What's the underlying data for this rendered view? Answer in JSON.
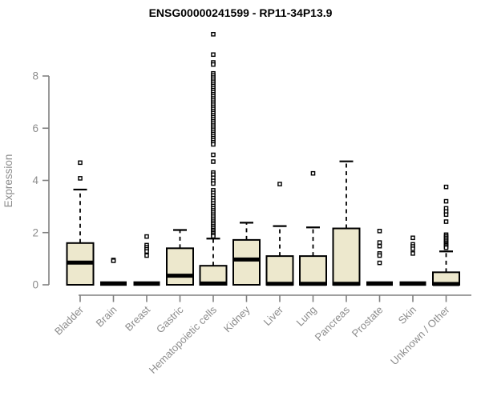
{
  "colors": {
    "box_fill": "#EDE8CD",
    "box_border": "#000000",
    "median": "#000000",
    "whisker": "#000000",
    "outlier_border": "#000000",
    "outlier_fill": "#FFFFFF",
    "axis_line": "#808080",
    "axis_text": "#8C8C8C",
    "title_text": "#000000",
    "background": "#FFFFFF"
  },
  "chart_data": {
    "type": "boxplot",
    "title": "ENSG00000241599 - RP11-34P13.9",
    "ylabel": "Expression",
    "xlabel": "",
    "yticks": [
      0,
      2,
      4,
      6,
      8
    ],
    "ylim": [
      0,
      9.7
    ],
    "grid": false,
    "legend": "none",
    "categories": [
      "Bladder",
      "Brain",
      "Breast",
      "Gastric",
      "Hematopoietic cells",
      "Kidney",
      "Liver",
      "Lung",
      "Pancreas",
      "Prostate",
      "Skin",
      "Unknown / Other"
    ],
    "series": [
      {
        "name": "Bladder",
        "whisker_low": 0,
        "q1": 0,
        "median": 0.85,
        "q3": 1.6,
        "whisker_high": 3.65,
        "outliers": [
          4.68,
          4.08
        ]
      },
      {
        "name": "Brain",
        "whisker_low": 0,
        "q1": 0,
        "median": 0,
        "q3": 0,
        "whisker_high": 0,
        "outliers": [
          0.95,
          0.92
        ]
      },
      {
        "name": "Breast",
        "whisker_low": 0,
        "q1": 0,
        "median": 0,
        "q3": 0,
        "whisker_high": 0,
        "outliers": [
          1.85,
          1.52,
          1.44,
          1.36,
          1.28,
          1.12
        ]
      },
      {
        "name": "Gastric",
        "whisker_low": 0,
        "q1": 0,
        "median": 0.35,
        "q3": 1.4,
        "whisker_high": 2.1,
        "outliers": []
      },
      {
        "name": "Hematopoietic cells",
        "whisker_low": 0,
        "q1": 0,
        "median": 0.05,
        "q3": 0.73,
        "whisker_high": 1.77,
        "outliers": [
          9.6,
          8.82,
          8.52,
          8.44,
          8.1,
          8.02,
          7.94,
          7.86,
          7.78,
          7.7,
          7.62,
          7.54,
          7.46,
          7.38,
          7.3,
          7.22,
          7.14,
          7.06,
          6.98,
          6.9,
          6.82,
          6.74,
          6.66,
          6.58,
          6.5,
          6.42,
          6.34,
          6.26,
          6.18,
          6.1,
          6.02,
          5.94,
          5.86,
          5.78,
          5.7,
          5.62,
          5.54,
          5.46,
          5.38,
          4.98,
          4.72,
          4.3,
          4.22,
          4.1,
          3.98,
          3.88,
          3.62,
          3.52,
          3.42,
          3.32,
          3.22,
          3.12,
          3.02,
          2.93,
          2.85,
          2.77,
          2.69,
          2.61,
          2.53,
          2.45,
          2.38,
          2.31,
          2.24,
          2.17,
          2.1,
          2.04,
          1.98,
          1.92,
          1.86
        ]
      },
      {
        "name": "Kidney",
        "whisker_low": 0,
        "q1": 0,
        "median": 0.97,
        "q3": 1.72,
        "whisker_high": 2.38,
        "outliers": []
      },
      {
        "name": "Liver",
        "whisker_low": 0,
        "q1": 0,
        "median": 0.04,
        "q3": 1.1,
        "whisker_high": 2.25,
        "outliers": [
          3.86
        ]
      },
      {
        "name": "Lung",
        "whisker_low": 0,
        "q1": 0,
        "median": 0.04,
        "q3": 1.1,
        "whisker_high": 2.2,
        "outliers": [
          4.27
        ]
      },
      {
        "name": "Pancreas",
        "whisker_low": 0,
        "q1": 0,
        "median": 0.04,
        "q3": 2.16,
        "whisker_high": 4.73,
        "outliers": []
      },
      {
        "name": "Prostate",
        "whisker_low": 0,
        "q1": 0,
        "median": 0,
        "q3": 0,
        "whisker_high": 0,
        "outliers": [
          2.06,
          1.62,
          1.48,
          1.2,
          1.12,
          0.84
        ]
      },
      {
        "name": "Skin",
        "whisker_low": 0,
        "q1": 0,
        "median": 0,
        "q3": 0,
        "whisker_high": 0,
        "outliers": [
          1.8,
          1.55,
          1.47,
          1.38,
          1.2
        ]
      },
      {
        "name": "Unknown / Other",
        "whisker_low": 0,
        "q1": 0,
        "median": 0.03,
        "q3": 0.48,
        "whisker_high": 1.28,
        "outliers": [
          3.75,
          3.2,
          2.93,
          2.81,
          2.69,
          2.42,
          1.92,
          1.86,
          1.8,
          1.74,
          1.68,
          1.62,
          1.57,
          1.52,
          1.47,
          1.42
        ]
      }
    ]
  }
}
